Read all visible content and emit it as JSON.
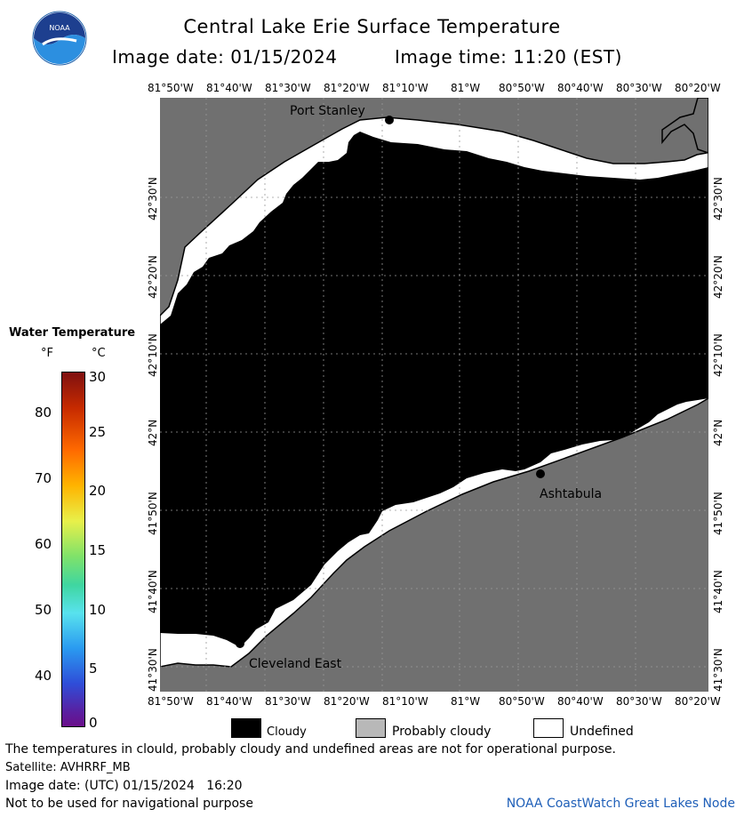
{
  "header": {
    "title": "Central Lake Erie Surface Temperature",
    "image_date_label": "Image date: 01/15/2024",
    "image_time_label": "Image time: 11:20 (EST)"
  },
  "logo": {
    "text": "NOAA"
  },
  "map": {
    "lon_labels": [
      "81°50'W",
      "81°40'W",
      "81°30'W",
      "81°20'W",
      "81°10'W",
      "81°W",
      "80°50'W",
      "80°40'W",
      "80°30'W",
      "80°20'W"
    ],
    "lat_labels": [
      "42°30'N",
      "42°20'N",
      "42°10'N",
      "42°N",
      "41°50'N",
      "41°40'N",
      "41°30'N"
    ],
    "places": {
      "port_stanley": "Port Stanley",
      "ashtabula": "Ashtabula",
      "cleveland_east": "Cleveland East"
    },
    "colors": {
      "land": "#707070",
      "cloudy": "#000000",
      "undefined": "#ffffff"
    }
  },
  "colorbar": {
    "title": "Water Temperature",
    "unit_f": "°F",
    "unit_c": "°C",
    "celsius_ticks": [
      "30",
      "25",
      "20",
      "15",
      "10",
      "5",
      "0"
    ],
    "fahrenheit_ticks": [
      "80",
      "70",
      "60",
      "50",
      "40"
    ]
  },
  "legend": {
    "cloudy": "Cloudy",
    "probably_cloudy": "Probably cloudy",
    "undefined": "Undefined"
  },
  "footer": {
    "disclaimer": "The temperatures in clould, probably cloudy and undefined areas are not for operational purpose.",
    "satellite": "Satellite: AVHRRF_MB",
    "utc_date": "Image date: (UTC) 01/15/2024   16:20",
    "navigation_note": "Not to be used for navigational purpose",
    "credit": "NOAA CoastWatch Great Lakes Node"
  }
}
